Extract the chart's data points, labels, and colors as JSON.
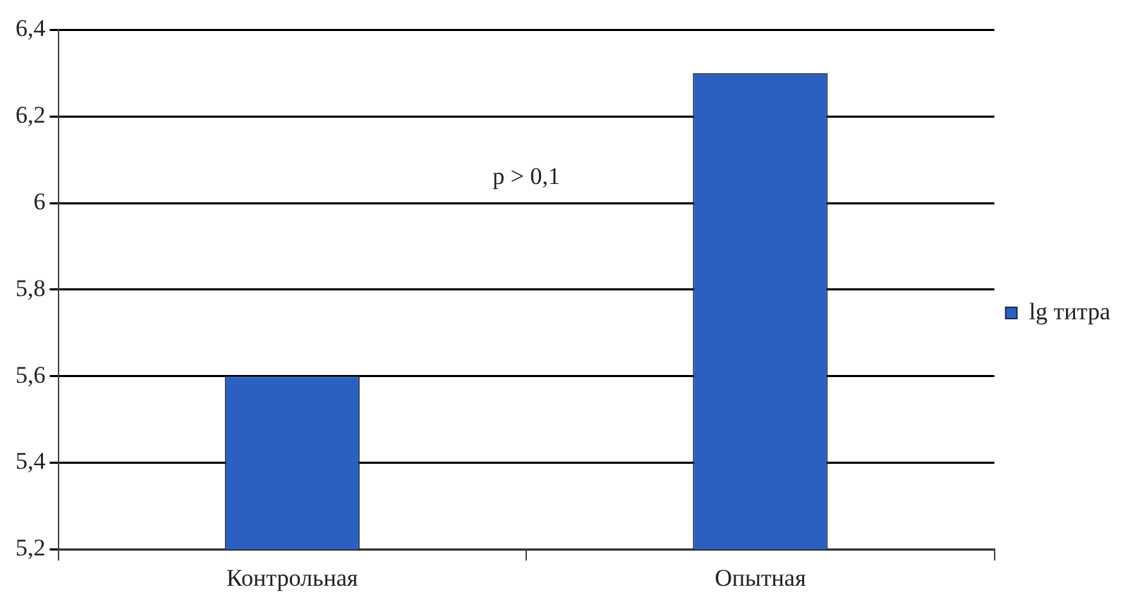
{
  "chart_data": {
    "type": "bar",
    "categories": [
      "Контрольная",
      "Опытная"
    ],
    "series": [
      {
        "name": "lg титра",
        "color": "#2b5fc0",
        "values": [
          5.6,
          6.3
        ]
      }
    ],
    "ylim": [
      5.2,
      6.4
    ],
    "yticks": [
      {
        "value": 5.2,
        "label": "5,2"
      },
      {
        "value": 5.4,
        "label": "5,4"
      },
      {
        "value": 5.6,
        "label": "5,6"
      },
      {
        "value": 5.8,
        "label": "5,8"
      },
      6,
      {
        "value": 6.2,
        "label": "6,2"
      },
      {
        "value": 6.4,
        "label": "6,4"
      }
    ],
    "grid": "y",
    "legend": "right",
    "annotations": [
      "p > 0,1"
    ]
  }
}
